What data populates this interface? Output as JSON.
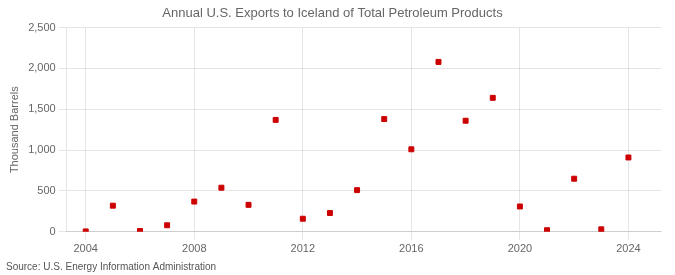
{
  "chart_data": {
    "type": "scatter",
    "title": "Annual U.S. Exports to Iceland of Total Petroleum Products",
    "ylabel": "Thousand Barrels",
    "annotation": "Source: U.S. Energy Information Administration",
    "x": [
      2004,
      2005,
      2006,
      2007,
      2008,
      2009,
      2010,
      2011,
      2012,
      2013,
      2014,
      2015,
      2016,
      2017,
      2018,
      2019,
      2020,
      2021,
      2022,
      2023,
      2024
    ],
    "values": [
      5,
      320,
      10,
      80,
      370,
      540,
      330,
      1370,
      160,
      230,
      510,
      1380,
      1010,
      2080,
      1360,
      1640,
      310,
      20,
      650,
      30,
      910
    ],
    "color": "#cc0000",
    "marker": "square",
    "xlim": [
      2003.3,
      2025.2
    ],
    "xticks": [
      2004,
      2008,
      2012,
      2016,
      2020,
      2024
    ],
    "ylim": [
      0,
      2500
    ],
    "yticks": [
      0,
      500,
      {
        "value": 1000,
        "label": "1,000"
      },
      {
        "value": 1500,
        "label": "1,500"
      },
      {
        "value": 2000,
        "label": "2,000"
      },
      {
        "value": 2500,
        "label": "2,500"
      }
    ],
    "grid": true
  }
}
